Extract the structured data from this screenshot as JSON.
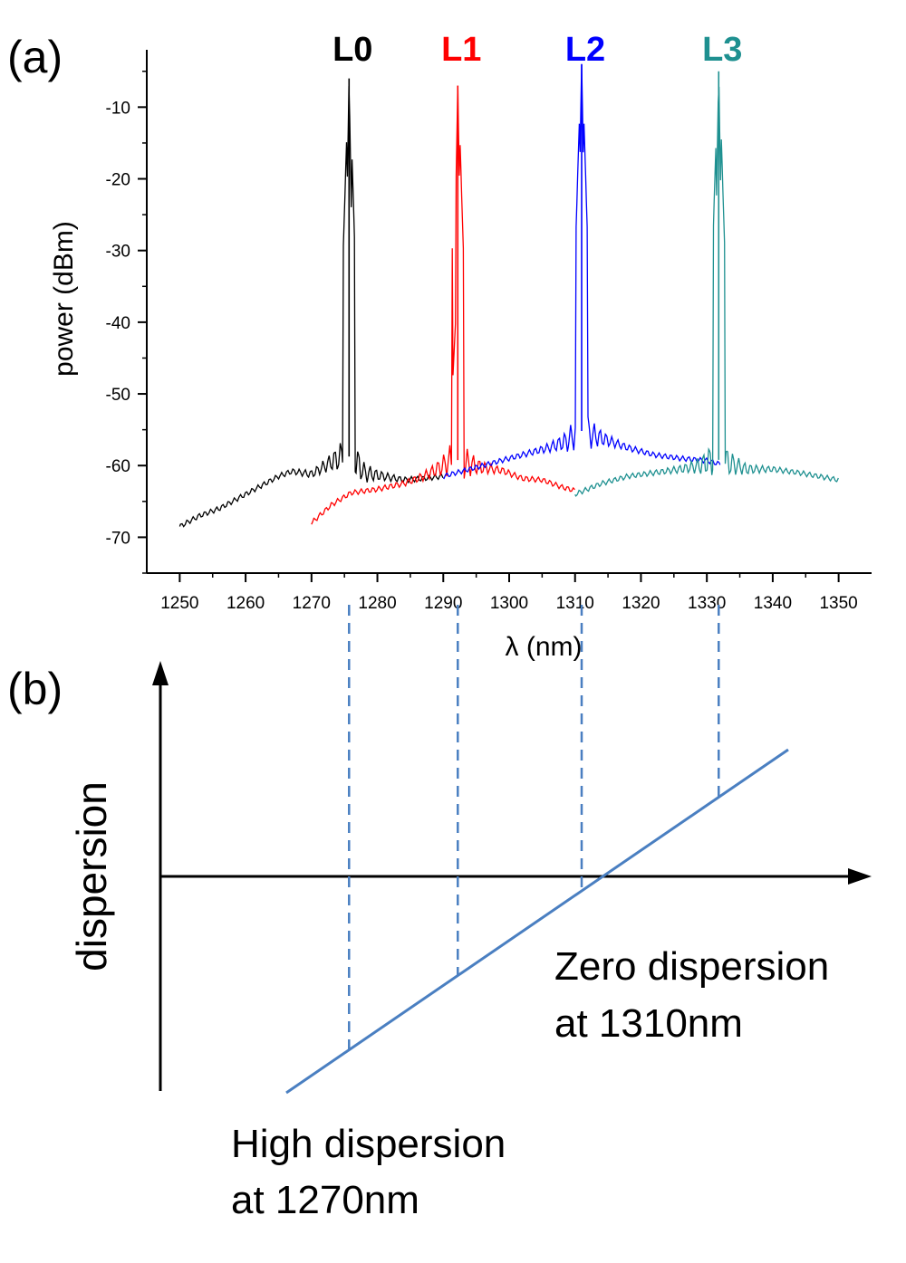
{
  "panel_a": {
    "label": "(a)",
    "chart_data": {
      "type": "line",
      "xlabel": "λ (nm)",
      "ylabel": "power (dBm)",
      "xlim": [
        1245,
        1355
      ],
      "ylim": [
        -75,
        -2
      ],
      "xticks": [
        1250,
        1260,
        1270,
        1280,
        1290,
        1300,
        1310,
        1320,
        1330,
        1340,
        1350
      ],
      "yticks": [
        -10,
        -20,
        -30,
        -40,
        -50,
        -60,
        -70
      ],
      "grid": false,
      "series": [
        {
          "name": "L0",
          "color": "#000000",
          "peak_x": 1275.7,
          "peak_y": -6,
          "x": [
            1250,
            1253,
            1256,
            1259,
            1262,
            1265,
            1267,
            1270,
            1273,
            1275,
            1276.5,
            1278,
            1281,
            1284,
            1287,
            1290
          ],
          "y": [
            -68.5,
            -67,
            -66,
            -64.5,
            -63,
            -61.5,
            -60.8,
            -61.2,
            -59.5,
            -58.5,
            -59,
            -61,
            -61.5,
            -62,
            -61.8,
            -61.5
          ]
        },
        {
          "name": "L1",
          "color": "#ff0000",
          "peak_x": 1292.2,
          "peak_y": -7,
          "x": [
            1270,
            1273,
            1276,
            1280,
            1284,
            1287,
            1290,
            1291.5,
            1293,
            1296,
            1299,
            1302,
            1305,
            1308,
            1310
          ],
          "y": [
            -68,
            -65.5,
            -63.8,
            -63.3,
            -62.5,
            -61.5,
            -60,
            -59,
            -59.5,
            -60.3,
            -60.7,
            -61.8,
            -62,
            -63,
            -63.5
          ]
        },
        {
          "name": "L2",
          "color": "#0000ff",
          "peak_x": 1311.0,
          "peak_y": -4,
          "x": [
            1290,
            1294,
            1298,
            1302,
            1306,
            1309,
            1310.5,
            1312,
            1315,
            1318,
            1322,
            1326,
            1330,
            1332
          ],
          "y": [
            -61.5,
            -60.5,
            -59.5,
            -58.5,
            -57.5,
            -56.5,
            -55,
            -55.5,
            -56.5,
            -57.5,
            -58.5,
            -59,
            -59.3,
            -59.8
          ]
        },
        {
          "name": "L3",
          "color": "#1e9090",
          "peak_x": 1331.8,
          "peak_y": -5,
          "x": [
            1310,
            1314,
            1318,
            1322,
            1326,
            1329,
            1331,
            1333,
            1336,
            1340,
            1344,
            1347,
            1350
          ],
          "y": [
            -64,
            -62.5,
            -61.5,
            -61,
            -60.5,
            -60,
            -59,
            -59.5,
            -60.5,
            -60.5,
            -61,
            -61.5,
            -62
          ]
        }
      ]
    }
  },
  "panel_b": {
    "label": "(b)",
    "ylabel": "dispersion",
    "annotation_zero_line1": "Zero dispersion",
    "annotation_zero_line2": "at 1310nm",
    "annotation_high_line1": "High dispersion",
    "annotation_high_line2": "at 1270nm",
    "line_color": "#4a7fc1",
    "marker_wavelengths": [
      1275.7,
      1292.2,
      1311.0,
      1331.8
    ]
  }
}
